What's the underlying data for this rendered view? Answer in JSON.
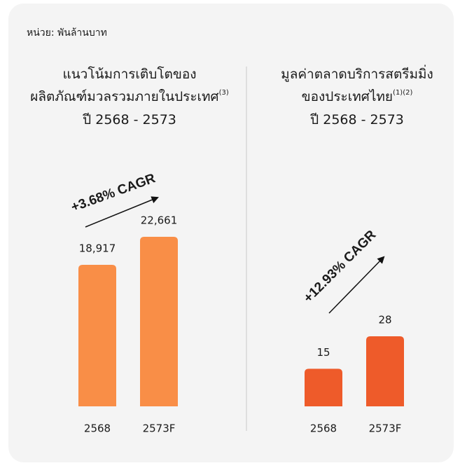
{
  "unit": "หน่วย: พันล้านบาท",
  "chart_data": [
    {
      "type": "bar",
      "title": [
        "แนวโน้มการเติบโตของ",
        "ผลิตภัณฑ์มวลรวมภายในประเทศ",
        "ปี 2568 - 2573"
      ],
      "title_superscript": "(3)",
      "annotation": "+3.68% CAGR",
      "categories": [
        "2568",
        "2573F"
      ],
      "values": [
        18917,
        22661
      ],
      "value_labels": [
        "18,917",
        "22,661"
      ],
      "color": "#f98e47"
    },
    {
      "type": "bar",
      "title": [
        "มูลค่าตลาดบริการสตรีมมิ่ง",
        "ของประเทศไทย",
        "ปี 2568 - 2573"
      ],
      "title_superscript": "(1)(2)",
      "annotation": "+12.93% CAGR",
      "categories": [
        "2568",
        "2573F"
      ],
      "values": [
        15,
        28
      ],
      "color": "#ee5b2a"
    }
  ]
}
